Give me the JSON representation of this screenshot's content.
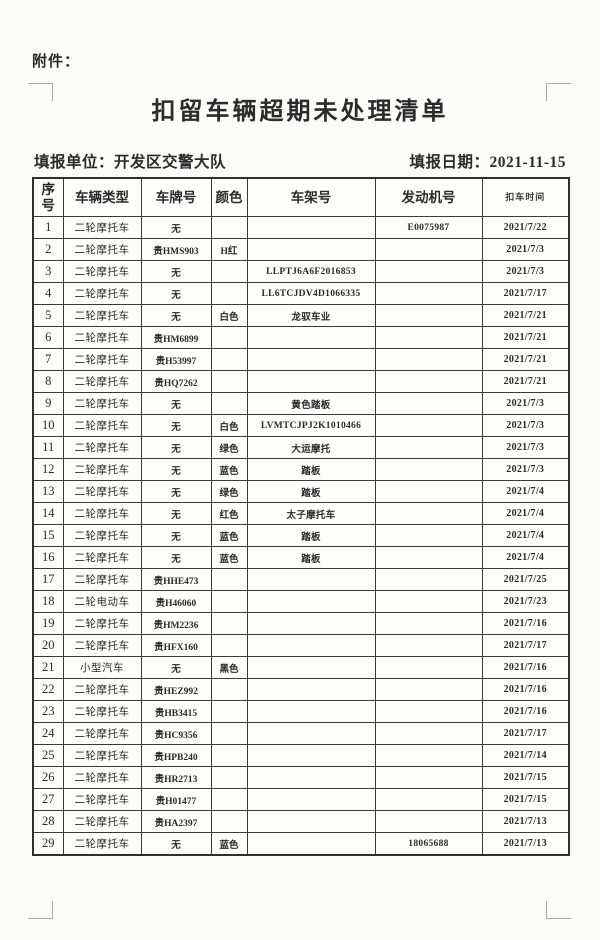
{
  "document": {
    "attachment_label": "附件：",
    "title": "扣留车辆超期未处理清单",
    "meta": {
      "unit_label": "填报单位：",
      "unit_value": "开发区交警大队",
      "date_label": "填报日期：",
      "date_value": "2021-11-15"
    },
    "table": {
      "headers": [
        "序号",
        "车辆类型",
        "车牌号",
        "颜色",
        "车架号",
        "发动机号",
        "扣车时间"
      ],
      "rows": [
        [
          "1",
          "二轮摩托车",
          "无",
          "",
          "",
          "E0075987",
          "2021/7/22"
        ],
        [
          "2",
          "二轮摩托车",
          "贵HMS903",
          "H红",
          "",
          "",
          "2021/7/3"
        ],
        [
          "3",
          "二轮摩托车",
          "无",
          "",
          "LLPTJ6A6F2016853",
          "",
          "2021/7/3"
        ],
        [
          "4",
          "二轮摩托车",
          "无",
          "",
          "LL6TCJDV4D1066335",
          "",
          "2021/7/17"
        ],
        [
          "5",
          "二轮摩托车",
          "无",
          "白色",
          "龙驭车业",
          "",
          "2021/7/21"
        ],
        [
          "6",
          "二轮摩托车",
          "贵HM6899",
          "",
          "",
          "",
          "2021/7/21"
        ],
        [
          "7",
          "二轮摩托车",
          "贵H53997",
          "",
          "",
          "",
          "2021/7/21"
        ],
        [
          "8",
          "二轮摩托车",
          "贵HQ7262",
          "",
          "",
          "",
          "2021/7/21"
        ],
        [
          "9",
          "二轮摩托车",
          "无",
          "",
          "黄色踏板",
          "",
          "2021/7/3"
        ],
        [
          "10",
          "二轮摩托车",
          "无",
          "白色",
          "LVMTCJPJ2K1010466",
          "",
          "2021/7/3"
        ],
        [
          "11",
          "二轮摩托车",
          "无",
          "绿色",
          "大运摩托",
          "",
          "2021/7/3"
        ],
        [
          "12",
          "二轮摩托车",
          "无",
          "蓝色",
          "踏板",
          "",
          "2021/7/3"
        ],
        [
          "13",
          "二轮摩托车",
          "无",
          "绿色",
          "踏板",
          "",
          "2021/7/4"
        ],
        [
          "14",
          "二轮摩托车",
          "无",
          "红色",
          "太子摩托车",
          "",
          "2021/7/4"
        ],
        [
          "15",
          "二轮摩托车",
          "无",
          "蓝色",
          "踏板",
          "",
          "2021/7/4"
        ],
        [
          "16",
          "二轮摩托车",
          "无",
          "蓝色",
          "踏板",
          "",
          "2021/7/4"
        ],
        [
          "17",
          "二轮摩托车",
          "贵HHE473",
          "",
          "",
          "",
          "2021/7/25"
        ],
        [
          "18",
          "二轮电动车",
          "贵H46060",
          "",
          "",
          "",
          "2021/7/23"
        ],
        [
          "19",
          "二轮摩托车",
          "贵HM2236",
          "",
          "",
          "",
          "2021/7/16"
        ],
        [
          "20",
          "二轮摩托车",
          "贵HFX160",
          "",
          "",
          "",
          "2021/7/17"
        ],
        [
          "21",
          "小型汽车",
          "无",
          "黑色",
          "",
          "",
          "2021/7/16"
        ],
        [
          "22",
          "二轮摩托车",
          "贵HEZ992",
          "",
          "",
          "",
          "2021/7/16"
        ],
        [
          "23",
          "二轮摩托车",
          "贵HB3415",
          "",
          "",
          "",
          "2021/7/16"
        ],
        [
          "24",
          "二轮摩托车",
          "贵HC9356",
          "",
          "",
          "",
          "2021/7/17"
        ],
        [
          "25",
          "二轮摩托车",
          "贵HPB240",
          "",
          "",
          "",
          "2021/7/14"
        ],
        [
          "26",
          "二轮摩托车",
          "贵HR2713",
          "",
          "",
          "",
          "2021/7/15"
        ],
        [
          "27",
          "二轮摩托车",
          "贵H01477",
          "",
          "",
          "",
          "2021/7/15"
        ],
        [
          "28",
          "二轮摩托车",
          "贵HA2397",
          "",
          "",
          "",
          "2021/7/13"
        ],
        [
          "29",
          "二轮摩托车",
          "无",
          "蓝色",
          "",
          "18065688",
          "2021/7/13"
        ]
      ]
    },
    "colors": {
      "text": "#2b2b2b",
      "table_border": "#3a3a3a",
      "corner_mark": "#a9a9a9",
      "page_bg": "#fbfbfa"
    }
  }
}
